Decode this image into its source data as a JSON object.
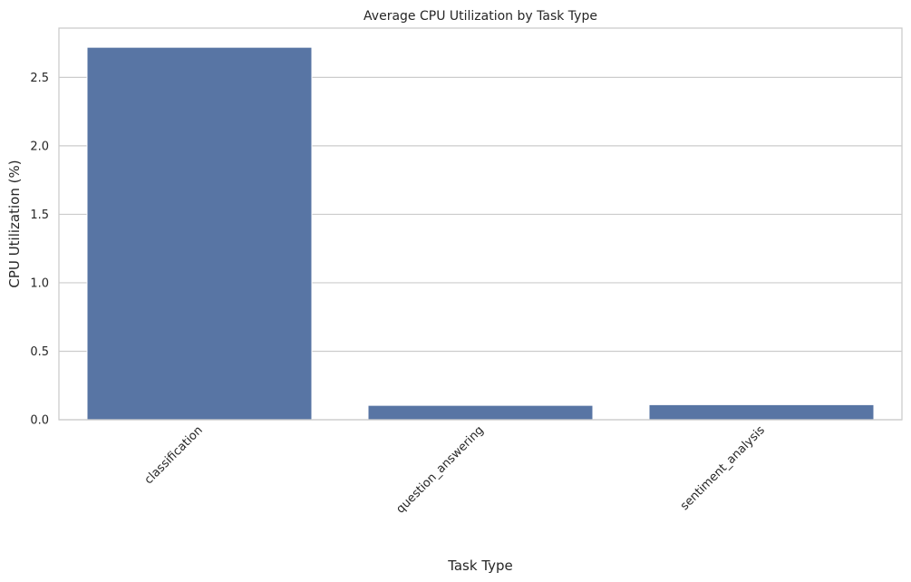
{
  "chart_data": {
    "type": "bar",
    "title": "Average CPU Utilization by Task Type",
    "xlabel": "Task Type",
    "ylabel": "CPU Utilization (%)",
    "categories": [
      "classification",
      "question_answering",
      "sentiment_analysis"
    ],
    "values": [
      2.72,
      0.105,
      0.11
    ],
    "ylim": [
      0,
      2.86
    ],
    "yticks": [
      "0.0",
      "0.5",
      "1.0",
      "1.5",
      "2.0",
      "2.5"
    ],
    "grid": "horizontal",
    "bar_color": "#5875a4",
    "xtick_rotation_deg": 45
  }
}
